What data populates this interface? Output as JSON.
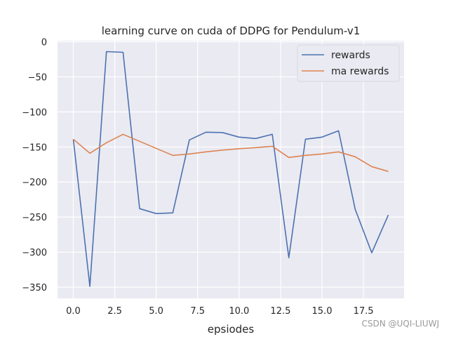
{
  "watermark": "CSDN @UQI-LIUWJ",
  "chart_data": {
    "type": "line",
    "title": "learning curve on cuda of DDPG for Pendulum-v1",
    "xlabel": "epsiodes",
    "ylabel": "",
    "xlim": [
      -0.95,
      19.95
    ],
    "ylim": [
      -366,
      1.5
    ],
    "xticks": [
      0.0,
      2.5,
      5.0,
      7.5,
      10.0,
      12.5,
      15.0,
      17.5
    ],
    "xtick_labels": [
      "0.0",
      "2.5",
      "5.0",
      "7.5",
      "10.0",
      "12.5",
      "15.0",
      "17.5"
    ],
    "yticks": [
      0,
      -50,
      -100,
      -150,
      -200,
      -250,
      -300,
      -350
    ],
    "ytick_labels": [
      "0",
      "−50",
      "−100",
      "−150",
      "−200",
      "−250",
      "−300",
      "−350"
    ],
    "grid": true,
    "legend_position": "top-right",
    "x": [
      0,
      1,
      2,
      3,
      4,
      5,
      6,
      7,
      8,
      9,
      10,
      11,
      12,
      13,
      14,
      15,
      16,
      17,
      18,
      19
    ],
    "series": [
      {
        "name": "rewards",
        "color": "#4c72b0",
        "values": [
          -139,
          -349,
          -14,
          -15,
          -238,
          -245,
          -244,
          -140,
          -129,
          -129.5,
          -136,
          -138,
          -132,
          -308,
          -139,
          -136,
          -127,
          -239,
          -301,
          -247
        ]
      },
      {
        "name": "ma rewards",
        "color": "#dd8452",
        "values": [
          -139,
          -159,
          -144,
          -132,
          -142,
          -152,
          -162,
          -160,
          -157,
          -154.5,
          -152.5,
          -151,
          -149,
          -165,
          -162,
          -160,
          -157,
          -164,
          -178,
          -185
        ]
      }
    ]
  }
}
